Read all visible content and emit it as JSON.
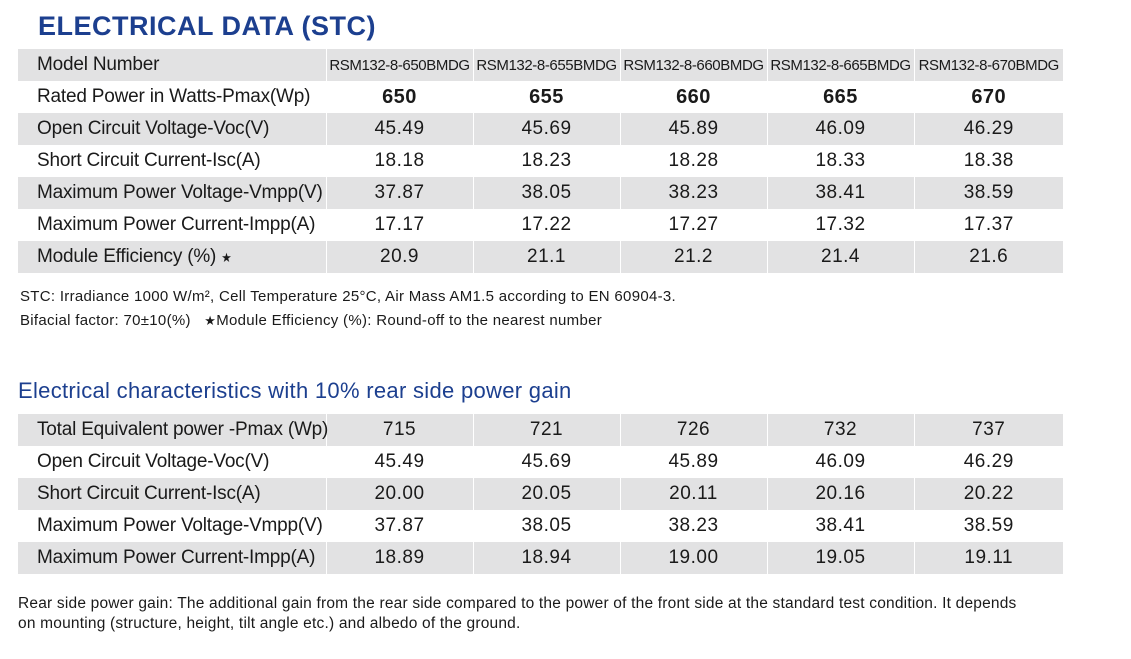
{
  "stc": {
    "title": "ELECTRICAL DATA (STC)",
    "header_label": "Model Number",
    "models": [
      "RSM132-8-650BMDG",
      "RSM132-8-655BMDG",
      "RSM132-8-660BMDG",
      "RSM132-8-665BMDG",
      "RSM132-8-670BMDG"
    ],
    "rows": [
      {
        "label": "Rated Power in Watts-Pmax(Wp)",
        "values": [
          "650",
          "655",
          "660",
          "665",
          "670"
        ]
      },
      {
        "label": "Open Circuit Voltage-Voc(V)",
        "values": [
          "45.49",
          "45.69",
          "45.89",
          "46.09",
          "46.29"
        ]
      },
      {
        "label": "Short Circuit Current-Isc(A)",
        "values": [
          "18.18",
          "18.23",
          "18.28",
          "18.33",
          "18.38"
        ]
      },
      {
        "label": "Maximum Power Voltage-Vmpp(V)",
        "values": [
          "37.87",
          "38.05",
          "38.23",
          "38.41",
          "38.59"
        ]
      },
      {
        "label": "Maximum Power Current-Impp(A)",
        "values": [
          "17.17",
          "17.22",
          "17.27",
          "17.32",
          "17.37"
        ]
      },
      {
        "label": "Module Efficiency (%)",
        "values": [
          "20.9",
          "21.1",
          "21.2",
          "21.4",
          "21.6"
        ]
      }
    ],
    "star": "★",
    "note_line1": "STC: Irradiance 1000 W/m², Cell Temperature 25°C, Air Mass AM1.5 according to EN 60904-3.",
    "note_line2a": "Bifacial factor:  70±10(%)",
    "note_line2b": "Module Efficiency (%): Round-off to the nearest number"
  },
  "rear": {
    "title": "Electrical characteristics with 10% rear side power gain",
    "rows": [
      {
        "label": "Total Equivalent power -Pmax (Wp)",
        "values": [
          "715",
          "721",
          "726",
          "732",
          "737"
        ]
      },
      {
        "label": "Open Circuit Voltage-Voc(V)",
        "values": [
          "45.49",
          "45.69",
          "45.89",
          "46.09",
          "46.29"
        ]
      },
      {
        "label": "Short Circuit Current-Isc(A)",
        "values": [
          "20.00",
          "20.05",
          "20.11",
          "20.16",
          "20.22"
        ]
      },
      {
        "label": "Maximum Power Voltage-Vmpp(V)",
        "values": [
          "37.87",
          "38.05",
          "38.23",
          "38.41",
          "38.59"
        ]
      },
      {
        "label": "Maximum Power Current-Impp(A)",
        "values": [
          "18.89",
          "18.94",
          "19.00",
          "19.05",
          "19.11"
        ]
      }
    ],
    "footnote": "Rear side power gain: The additional gain from the rear side compared to the power of the front side at the standard test condition. It depends on mounting (structure, height, tilt angle etc.) and albedo of the ground."
  }
}
